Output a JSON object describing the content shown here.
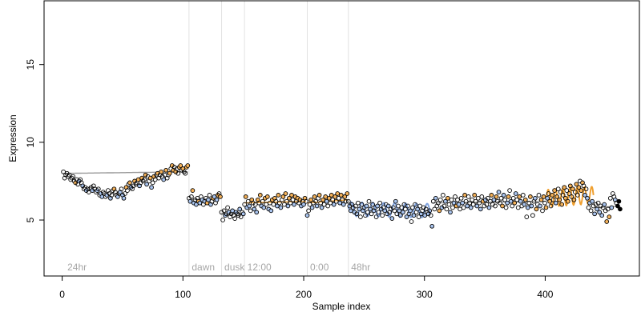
{
  "chart_data": {
    "type": "scatter",
    "title": "",
    "xlabel": "Sample index",
    "ylabel": "Expression",
    "xlim": [
      -15,
      478
    ],
    "ylim": [
      1.4,
      19.1
    ],
    "x_ticks": [
      0,
      100,
      200,
      300,
      400
    ],
    "y_ticks": [
      5,
      10,
      15
    ],
    "x_tick_labels": [
      "0",
      "100",
      "200",
      "300",
      "400"
    ],
    "y_tick_labels": [
      "5",
      "10",
      "15"
    ],
    "grid": false,
    "legend": "none",
    "colors": {
      "point_fill_warm": "#f5b25a",
      "point_fill_cool": "#a9c4ee",
      "point_fill_black": "#000000",
      "point_stroke": "#000000",
      "fit_line_warm": "#f0a030",
      "fit_line_cool": "#7fa2dd",
      "fit_line_neutral": "#9a9a9a",
      "divider": "#e2e2e2",
      "annotation_text": "#a6a6a6"
    },
    "annotations": [
      {
        "text": "24hr",
        "x": 3
      },
      {
        "text": "dawn",
        "x": 106
      },
      {
        "text": "dusk",
        "x": 133
      },
      {
        "text": "12:00",
        "x": 152
      },
      {
        "text": "0:00",
        "x": 204
      },
      {
        "text": "48hr",
        "x": 238
      }
    ],
    "dividers": [
      105,
      132,
      151,
      203,
      237
    ],
    "series": [
      {
        "segment": "24hr",
        "x_start": 1,
        "x_end": 104,
        "values": [
          8.1,
          7.7,
          7.9,
          8.0,
          7.8,
          7.9,
          7.6,
          7.7,
          7.8,
          7.5,
          7.4,
          7.6,
          7.3,
          7.5,
          7.6,
          7.4,
          7.2,
          7.0,
          7.1,
          6.9,
          7.0,
          6.8,
          7.0,
          7.1,
          6.9,
          7.2,
          7.0,
          6.8,
          6.9,
          7.0,
          6.6,
          6.7,
          6.5,
          6.8,
          6.7,
          6.5,
          6.6,
          6.9,
          6.7,
          6.4,
          6.6,
          6.9,
          7.0,
          6.8,
          6.6,
          6.5,
          6.7,
          6.8,
          7.0,
          6.6,
          6.4,
          6.7,
          7.1,
          6.9,
          7.3,
          7.4,
          7.1,
          7.0,
          7.2,
          7.5,
          7.3,
          7.4,
          7.6,
          7.2,
          7.4,
          7.7,
          7.5,
          7.6,
          7.9,
          7.3,
          7.8,
          7.5,
          7.7,
          7.1,
          7.4,
          7.8,
          7.6,
          7.9,
          8.0,
          7.7,
          7.9,
          8.1,
          7.8,
          7.6,
          7.9,
          8.2,
          7.7,
          7.9,
          8.0,
          8.3,
          8.5,
          8.2,
          8.4,
          8.1,
          8.3,
          8.0,
          8.4,
          8.5,
          8.2,
          8.3,
          8.1,
          8.0,
          8.4,
          8.5
        ],
        "fill": [
          "b",
          "b",
          "b",
          "b",
          "b",
          "b",
          "b",
          "b",
          "b",
          "b",
          "w",
          "b",
          "b",
          "c",
          "b",
          "b",
          "c",
          "b",
          "b",
          "c",
          "b",
          "b",
          "b",
          "b",
          "c",
          "b",
          "b",
          "b",
          "c",
          "b",
          "b",
          "c",
          "c",
          "b",
          "b",
          "b",
          "c",
          "b",
          "b",
          "c",
          "b",
          "b",
          "w",
          "b",
          "b",
          "c",
          "b",
          "c",
          "b",
          "c",
          "c",
          "b",
          "w",
          "b",
          "b",
          "w",
          "c",
          "b",
          "b",
          "w",
          "b",
          "b",
          "w",
          "c",
          "b",
          "w",
          "b",
          "b",
          "w",
          "c",
          "b",
          "b",
          "w",
          "c",
          "b",
          "w",
          "b",
          "b",
          "w",
          "b",
          "b",
          "w",
          "b",
          "c",
          "b",
          "w",
          "b",
          "b",
          "w",
          "b",
          "w",
          "w",
          "b",
          "w",
          "b",
          "b",
          "w",
          "w",
          "b",
          "w",
          "b",
          "b",
          "w",
          "w"
        ]
      },
      {
        "segment": "dawn",
        "x_start": 105,
        "x_end": 131,
        "values": [
          6.4,
          6.2,
          6.5,
          6.9,
          6.1,
          6.3,
          6.0,
          6.4,
          6.2,
          6.1,
          6.5,
          6.3,
          6.0,
          6.2,
          6.4,
          6.1,
          6.3,
          6.6,
          6.0,
          6.2,
          6.4,
          6.5,
          6.1,
          6.3,
          6.6,
          6.7,
          6.5
        ],
        "fill": [
          "b",
          "c",
          "b",
          "w",
          "c",
          "b",
          "c",
          "b",
          "w",
          "c",
          "b",
          "c",
          "b",
          "c",
          "b",
          "w",
          "c",
          "b",
          "c",
          "b",
          "w",
          "c",
          "b",
          "c",
          "w",
          "b",
          "w"
        ]
      },
      {
        "segment": "dusk",
        "x_start": 132,
        "x_end": 150,
        "values": [
          5.5,
          5.0,
          5.6,
          5.3,
          5.4,
          5.8,
          5.5,
          5.2,
          5.4,
          5.6,
          5.3,
          5.1,
          5.5,
          5.4,
          5.3,
          5.7,
          5.2,
          5.5,
          5.4
        ],
        "fill": [
          "b",
          "b",
          "b",
          "c",
          "b",
          "b",
          "c",
          "b",
          "b",
          "c",
          "b",
          "b",
          "c",
          "b",
          "b",
          "c",
          "b",
          "b",
          "c"
        ]
      },
      {
        "segment": "12:00",
        "x_start": 151,
        "x_end": 202,
        "values": [
          6.0,
          6.5,
          5.8,
          6.2,
          5.9,
          5.6,
          6.3,
          6.1,
          5.7,
          6.0,
          5.5,
          6.3,
          6.1,
          6.6,
          5.9,
          6.2,
          5.8,
          6.4,
          6.0,
          6.5,
          5.7,
          6.1,
          5.6,
          6.3,
          6.0,
          6.4,
          6.2,
          5.9,
          6.6,
          6.1,
          5.8,
          6.3,
          6.5,
          6.0,
          6.7,
          6.2,
          5.9,
          6.4,
          6.1,
          6.6,
          6.3,
          6.0,
          6.5,
          6.2,
          6.4,
          6.1,
          6.3,
          5.9,
          6.2,
          6.0,
          6.4,
          6.2
        ],
        "fill": [
          "b",
          "w",
          "c",
          "b",
          "c",
          "b",
          "w",
          "b",
          "c",
          "b",
          "c",
          "w",
          "b",
          "w",
          "c",
          "b",
          "c",
          "w",
          "b",
          "w",
          "c",
          "b",
          "c",
          "w",
          "b",
          "w",
          "b",
          "c",
          "w",
          "b",
          "c",
          "b",
          "w",
          "b",
          "w",
          "b",
          "c",
          "w",
          "b",
          "w",
          "b",
          "c",
          "w",
          "b",
          "w",
          "b",
          "w",
          "c",
          "b",
          "c",
          "w",
          "b"
        ]
      },
      {
        "segment": "0:00",
        "x_start": 203,
        "x_end": 236,
        "values": [
          5.3,
          5.6,
          6.0,
          6.3,
          5.8,
          6.1,
          6.5,
          6.2,
          5.9,
          6.4,
          6.6,
          6.1,
          5.8,
          6.3,
          6.0,
          6.5,
          6.2,
          5.9,
          6.4,
          6.1,
          6.6,
          6.3,
          6.0,
          6.5,
          6.2,
          6.7,
          6.4,
          6.1,
          6.6,
          6.3,
          6.0,
          6.5,
          6.2,
          6.7
        ],
        "fill": [
          "c",
          "b",
          "b",
          "w",
          "c",
          "b",
          "w",
          "b",
          "c",
          "b",
          "w",
          "b",
          "c",
          "w",
          "b",
          "w",
          "c",
          "b",
          "w",
          "b",
          "w",
          "b",
          "c",
          "w",
          "b",
          "w",
          "b",
          "c",
          "w",
          "b",
          "c",
          "w",
          "b",
          "w"
        ]
      },
      {
        "segment": "48hr",
        "x_start": 237,
        "x_end": 462,
        "values": [
          6.2,
          5.9,
          5.6,
          6.0,
          5.8,
          5.5,
          5.9,
          5.4,
          6.1,
          5.7,
          5.2,
          6.0,
          5.6,
          5.8,
          5.3,
          5.9,
          5.5,
          6.2,
          5.7,
          5.4,
          6.0,
          5.6,
          5.8,
          5.2,
          5.9,
          5.5,
          6.1,
          5.7,
          5.3,
          5.8,
          5.6,
          6.0,
          5.4,
          5.9,
          5.5,
          5.7,
          5.1,
          5.8,
          5.6,
          6.2,
          5.4,
          5.9,
          5.6,
          5.3,
          5.8,
          5.5,
          6.0,
          5.7,
          5.2,
          5.9,
          5.4,
          5.6,
          4.9,
          5.8,
          5.3,
          6.0,
          5.5,
          5.7,
          5.2,
          5.9,
          5.4,
          5.6,
          5.8,
          5.3,
          5.7,
          5.5,
          5.4,
          5.6,
          5.3,
          4.6,
          6.2,
          5.7,
          6.4,
          5.9,
          6.1,
          5.6,
          6.3,
          5.8,
          6.6,
          5.9,
          6.2,
          5.7,
          6.4,
          6.0,
          5.5,
          6.3,
          5.8,
          6.1,
          6.5,
          5.9,
          6.3,
          6.0,
          5.7,
          6.4,
          6.1,
          5.8,
          6.6,
          6.2,
          5.9,
          6.5,
          6.1,
          5.8,
          6.3,
          6.0,
          6.6,
          6.2,
          5.9,
          6.4,
          6.1,
          5.7,
          6.5,
          6.2,
          5.9,
          6.3,
          6.0,
          6.4,
          5.8,
          6.2,
          6.6,
          6.0,
          6.3,
          5.9,
          6.5,
          6.2,
          6.8,
          6.1,
          6.4,
          5.9,
          6.6,
          6.3,
          5.8,
          6.1,
          6.5,
          6.9,
          6.2,
          5.9,
          6.4,
          6.1,
          6.7,
          6.3,
          5.8,
          6.5,
          6.2,
          5.9,
          6.6,
          6.0,
          6.3,
          5.2,
          5.8,
          6.1,
          6.5,
          5.9,
          5.3,
          6.2,
          6.4,
          5.7,
          6.0,
          6.6,
          5.9,
          6.3,
          5.6,
          6.5,
          6.1,
          5.8,
          6.4,
          6.7,
          6.2,
          5.9,
          6.6,
          6.3,
          6.9,
          6.1,
          6.5,
          7.0,
          6.3,
          6.8,
          6.0,
          6.6,
          7.1,
          6.4,
          6.9,
          6.2,
          6.7,
          7.2,
          6.5,
          7.0,
          6.3,
          6.8,
          7.3,
          6.6,
          7.1,
          7.5,
          6.9,
          7.4,
          7.2,
          6.6,
          7.0,
          6.4,
          5.8,
          6.1,
          5.6,
          6.2,
          5.9,
          5.4,
          6.0,
          5.7,
          6.1,
          5.5,
          5.9,
          5.3,
          5.8,
          6.0,
          5.6,
          4.9,
          5.7,
          5.2,
          6.4,
          5.8,
          6.7,
          6.5,
          6.3,
          6.1,
          5.9,
          6.2,
          5.7
        ],
        "fill": [
          "b",
          "b",
          "c",
          "b",
          "b",
          "c",
          "b",
          "b",
          "b",
          "c",
          "b",
          "b",
          "c",
          "b",
          "b",
          "c",
          "b",
          "b",
          "c",
          "b",
          "b",
          "c",
          "b",
          "b",
          "c",
          "b",
          "b",
          "c",
          "b",
          "b",
          "c",
          "b",
          "b",
          "c",
          "b",
          "b",
          "c",
          "b",
          "b",
          "c",
          "b",
          "b",
          "c",
          "b",
          "b",
          "c",
          "b",
          "b",
          "c",
          "b",
          "b",
          "c",
          "b",
          "b",
          "c",
          "b",
          "b",
          "c",
          "b",
          "b",
          "c",
          "b",
          "b",
          "c",
          "b",
          "b",
          "c",
          "b",
          "b",
          "c",
          "b",
          "b",
          "c",
          "b",
          "b",
          "w",
          "b",
          "c",
          "b",
          "b",
          "c",
          "b",
          "w",
          "b",
          "c",
          "b",
          "b",
          "c",
          "b",
          "w",
          "b",
          "c",
          "b",
          "b",
          "c",
          "b",
          "w",
          "b",
          "c",
          "b",
          "b",
          "c",
          "b",
          "b",
          "w",
          "b",
          "c",
          "b",
          "b",
          "c",
          "b",
          "w",
          "b",
          "c",
          "b",
          "b",
          "c",
          "b",
          "w",
          "b",
          "c",
          "b",
          "w",
          "b",
          "c",
          "b",
          "b",
          "w",
          "c",
          "b",
          "b",
          "c",
          "w",
          "b",
          "c",
          "b",
          "b",
          "w",
          "c",
          "b",
          "b",
          "w",
          "c",
          "b",
          "b",
          "c",
          "w",
          "b",
          "c",
          "b",
          "w",
          "c",
          "b",
          "b",
          "c",
          "w",
          "b",
          "b",
          "c",
          "w",
          "b",
          "w",
          "b",
          "w",
          "c",
          "b",
          "w",
          "b",
          "w",
          "b",
          "w",
          "c",
          "w",
          "b",
          "w",
          "b",
          "w",
          "b",
          "w",
          "w",
          "b",
          "w",
          "b",
          "w",
          "b",
          "w",
          "w",
          "b",
          "w",
          "b",
          "w",
          "b",
          "w",
          "w",
          "b",
          "c",
          "b",
          "c",
          "b",
          "c",
          "b",
          "c",
          "b",
          "c",
          "b",
          "c",
          "b",
          "c",
          "b",
          "c",
          "b",
          "c",
          "b",
          "w",
          "b",
          "w",
          "b",
          "c",
          "b",
          "b",
          "c",
          "b"
        ]
      }
    ],
    "fit_line": {
      "description": "Piecewise fitted curve drawn behind points; oscillating segments near x 240-300 (cool) and 400-440 (warm)",
      "segments": [
        {
          "x": [
            1,
            104
          ],
          "y": [
            8.0,
            8.1
          ],
          "color_key": "fit_line_neutral"
        },
        {
          "x": [
            105,
            131
          ],
          "y": [
            6.3,
            6.4
          ],
          "color_key": "fit_line_neutral"
        },
        {
          "x": [
            132,
            150
          ],
          "y": [
            5.4,
            5.4
          ],
          "color_key": "fit_line_neutral"
        },
        {
          "x": [
            151,
            202
          ],
          "y": [
            6.1,
            6.2
          ],
          "color_key": "fit_line_warm"
        },
        {
          "x": [
            203,
            236
          ],
          "y": [
            6.1,
            6.3
          ],
          "color_key": "fit_line_warm"
        },
        {
          "x": [
            237,
            305
          ],
          "y": [
            5.7,
            5.6
          ],
          "color_key": "fit_line_cool",
          "oscillation": {
            "amplitude": 0.45,
            "period": 9
          }
        },
        {
          "x": [
            306,
            400
          ],
          "y": [
            6.1,
            6.2
          ],
          "color_key": "fit_line_neutral"
        },
        {
          "x": [
            401,
            440
          ],
          "y": [
            6.4,
            6.6
          ],
          "color_key": "fit_line_warm",
          "oscillation": {
            "amplitude": 0.55,
            "period": 6
          }
        },
        {
          "x": [
            441,
            462
          ],
          "y": [
            5.8,
            5.9
          ],
          "color_key": "fit_line_neutral"
        }
      ]
    }
  }
}
